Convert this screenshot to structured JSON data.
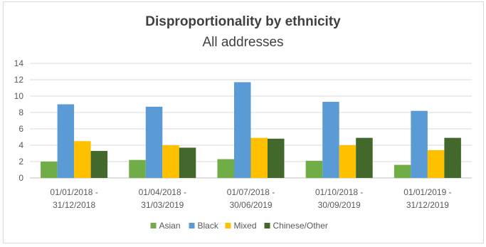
{
  "chart_data": {
    "type": "bar",
    "title": "Disproportionality by ethnicity",
    "subtitle": "All addresses",
    "xlabel": "",
    "ylabel": "",
    "ylim": [
      0,
      14
    ],
    "yticks": [
      0,
      2,
      4,
      6,
      8,
      10,
      12,
      14
    ],
    "grid": true,
    "legend_position": "bottom",
    "categories": [
      [
        "01/01/2018 -",
        "31/12/2018"
      ],
      [
        "01/04/2018 -",
        "31/03/2019"
      ],
      [
        "01/07/2018 -",
        "30/06/2019"
      ],
      [
        "01/10/2018 -",
        "30/09/2019"
      ],
      [
        "01/01/2019 -",
        "31/12/2019"
      ]
    ],
    "series": [
      {
        "name": "Asian",
        "color": "#70ad47",
        "values": [
          2.0,
          2.2,
          2.3,
          2.1,
          1.6
        ]
      },
      {
        "name": "Black",
        "color": "#5b9bd5",
        "values": [
          9.0,
          8.7,
          11.7,
          9.3,
          8.2
        ]
      },
      {
        "name": "Mixed",
        "color": "#ffc000",
        "values": [
          4.5,
          4.0,
          4.9,
          4.0,
          3.4
        ]
      },
      {
        "name": "Chinese/Other",
        "color": "#43682b",
        "values": [
          3.3,
          3.7,
          4.8,
          4.9,
          4.9
        ]
      }
    ]
  }
}
